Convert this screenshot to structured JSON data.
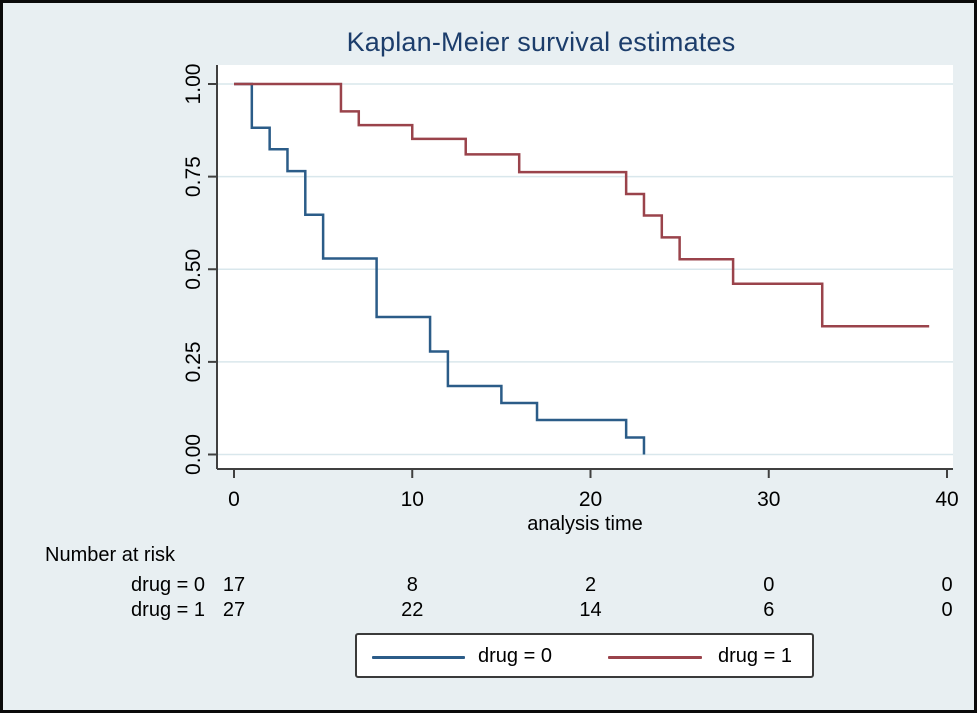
{
  "title": "Kaplan-Meier survival estimates",
  "chart_data": {
    "type": "line",
    "subtype": "kaplan-meier-step",
    "title": "Kaplan-Meier survival estimates",
    "xlabel": "analysis time",
    "ylabel": "",
    "xlim": [
      0,
      40
    ],
    "ylim": [
      0.0,
      1.0
    ],
    "xticks": [
      "0",
      "10",
      "20",
      "30",
      "40"
    ],
    "xtick_values": [
      0,
      10,
      20,
      30,
      40
    ],
    "yticks": [
      "0.00",
      "0.25",
      "0.50",
      "0.75",
      "1.00"
    ],
    "ytick_values": [
      0.0,
      0.25,
      0.5,
      0.75,
      1.0
    ],
    "grid": true,
    "legend_position": "bottom",
    "series": [
      {
        "name": "drug = 0",
        "color": "#2b5c88",
        "steps": [
          [
            0,
            1.0
          ],
          [
            1,
            0.882
          ],
          [
            2,
            0.824
          ],
          [
            3,
            0.765
          ],
          [
            4,
            0.647
          ],
          [
            5,
            0.529
          ],
          [
            8,
            0.371
          ],
          [
            11,
            0.278
          ],
          [
            12,
            0.185
          ],
          [
            15,
            0.139
          ],
          [
            17,
            0.093
          ],
          [
            22,
            0.046
          ],
          [
            23,
            0.0
          ]
        ],
        "end_time": 23
      },
      {
        "name": "drug = 1",
        "color": "#9a434b",
        "steps": [
          [
            0,
            1.0
          ],
          [
            6,
            0.926
          ],
          [
            7,
            0.889
          ],
          [
            10,
            0.852
          ],
          [
            13,
            0.81
          ],
          [
            16,
            0.762
          ],
          [
            22,
            0.703
          ],
          [
            23,
            0.645
          ],
          [
            24,
            0.586
          ],
          [
            25,
            0.527
          ],
          [
            28,
            0.461
          ],
          [
            33,
            0.346
          ]
        ],
        "end_time": 39
      }
    ],
    "risk_table": {
      "title": "Number at risk",
      "times": [
        0,
        10,
        20,
        30,
        40
      ],
      "rows": [
        {
          "label": "drug = 0",
          "counts": [
            "17",
            "8",
            "2",
            "0",
            "0"
          ]
        },
        {
          "label": "drug = 1",
          "counts": [
            "27",
            "22",
            "14",
            "6",
            "0"
          ]
        }
      ]
    }
  },
  "legend": {
    "items": [
      {
        "label": "drug = 0",
        "color": "#2b5c88"
      },
      {
        "label": "drug = 1",
        "color": "#9a434b"
      }
    ]
  },
  "colors": {
    "background": "#e8eff2",
    "plot_background": "#ffffff",
    "gridline": "#d9e7ec",
    "axis": "#404040",
    "title": "#1c3d6b",
    "text": "#000000",
    "figure_border": "#0b0b0b"
  }
}
